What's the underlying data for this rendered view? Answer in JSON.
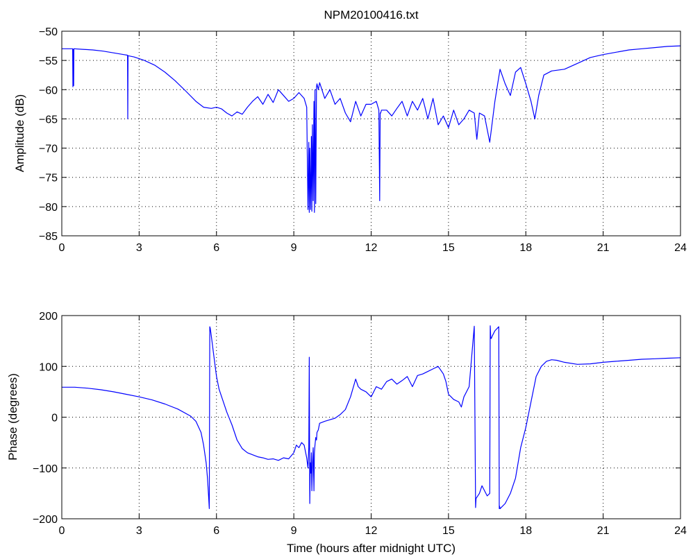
{
  "colors": {
    "line": "#0000ff",
    "axes": "#000000",
    "grid": "#000000",
    "background": "#ffffff"
  },
  "chart_data": [
    {
      "type": "line",
      "title": "NPM20100416.txt",
      "xlabel": "",
      "ylabel": "Amplitude (dB)",
      "xlim": [
        0,
        24
      ],
      "ylim": [
        -85,
        -50
      ],
      "xticks": [
        0,
        3,
        6,
        9,
        12,
        15,
        18,
        21,
        24
      ],
      "yticks": [
        -85,
        -80,
        -75,
        -70,
        -65,
        -60,
        -55,
        -50
      ],
      "grid": true,
      "series": [
        {
          "x": [
            0,
            0.3,
            0.42,
            0.43,
            0.44,
            0.45,
            0.46,
            0.47,
            0.48,
            0.8,
            1.2,
            1.6,
            2.0,
            2.4,
            2.55,
            2.56,
            2.57,
            2.58,
            2.8,
            3.2,
            3.6,
            4.0,
            4.4,
            4.8,
            5.2,
            5.5,
            5.8,
            6.0,
            6.2,
            6.4,
            6.6,
            6.8,
            7.0,
            7.2,
            7.4,
            7.6,
            7.8,
            8.0,
            8.2,
            8.4,
            8.6,
            8.8,
            9.0,
            9.2,
            9.4,
            9.5,
            9.55,
            9.58,
            9.6,
            9.62,
            9.65,
            9.68,
            9.7,
            9.72,
            9.75,
            9.78,
            9.8,
            9.82,
            9.85,
            9.88,
            9.9,
            9.95,
            10.0,
            10.2,
            10.4,
            10.6,
            10.8,
            11.0,
            11.2,
            11.4,
            11.6,
            11.8,
            12.0,
            12.2,
            12.3,
            12.33,
            12.35,
            12.37,
            12.4,
            12.6,
            12.8,
            13.0,
            13.2,
            13.4,
            13.6,
            13.8,
            14.0,
            14.2,
            14.4,
            14.6,
            14.8,
            15.0,
            15.2,
            15.4,
            15.6,
            15.8,
            16.0,
            16.1,
            16.2,
            16.4,
            16.6,
            16.8,
            17.0,
            17.2,
            17.4,
            17.6,
            17.8,
            18.0,
            18.2,
            18.35,
            18.5,
            18.7,
            19.0,
            19.5,
            20.0,
            20.5,
            21.0,
            21.5,
            22.0,
            22.5,
            23.0,
            23.5,
            24.0
          ],
          "y": [
            -53.0,
            -53.0,
            -53.0,
            -59.5,
            -59.2,
            -53.1,
            -59.3,
            -53.0,
            -53.0,
            -53.1,
            -53.2,
            -53.4,
            -53.7,
            -54.0,
            -54.1,
            -65.0,
            -54.2,
            -54.2,
            -54.4,
            -55.0,
            -55.8,
            -57.0,
            -58.5,
            -60.2,
            -62.0,
            -63.0,
            -63.2,
            -63.0,
            -63.3,
            -64.0,
            -64.5,
            -63.8,
            -64.2,
            -63.0,
            -62.0,
            -61.2,
            -62.5,
            -60.8,
            -62.2,
            -60.0,
            -61.0,
            -62.0,
            -61.5,
            -60.5,
            -61.5,
            -63.0,
            -80.5,
            -69.0,
            -81.0,
            -70.0,
            -80.5,
            -68.0,
            -80.8,
            -66.0,
            -79.0,
            -62.0,
            -81.0,
            -60.0,
            -79.5,
            -59.5,
            -59.0,
            -60.0,
            -58.8,
            -61.5,
            -60.0,
            -62.5,
            -61.5,
            -64.0,
            -65.5,
            -62.0,
            -64.5,
            -62.5,
            -62.5,
            -62.0,
            -63.5,
            -79.0,
            -64.0,
            -64.0,
            -63.5,
            -63.5,
            -64.5,
            -63.2,
            -62.0,
            -64.5,
            -62.0,
            -63.5,
            -61.5,
            -65.0,
            -61.5,
            -66.0,
            -64.5,
            -66.5,
            -63.5,
            -66.0,
            -65.0,
            -63.5,
            -64.0,
            -68.5,
            -64.0,
            -64.5,
            -69.0,
            -62.0,
            -56.5,
            -59.0,
            -61.0,
            -57.0,
            -56.2,
            -59.0,
            -62.0,
            -65.0,
            -61.0,
            -57.5,
            -56.8,
            -56.5,
            -55.5,
            -54.5,
            -54.0,
            -53.6,
            -53.2,
            -53.0,
            -52.8,
            -52.6,
            -52.5
          ]
        }
      ]
    },
    {
      "type": "line",
      "title": "",
      "xlabel": "Time (hours after midnight UTC)",
      "ylabel": "Phase (degrees)",
      "xlim": [
        0,
        24
      ],
      "ylim": [
        -200,
        200
      ],
      "xticks": [
        0,
        3,
        6,
        9,
        12,
        15,
        18,
        21,
        24
      ],
      "yticks": [
        -200,
        -100,
        0,
        100,
        200
      ],
      "grid": true,
      "series": [
        {
          "x": [
            0,
            0.5,
            1.0,
            1.5,
            2.0,
            2.5,
            3.0,
            3.5,
            4.0,
            4.5,
            5.0,
            5.2,
            5.4,
            5.5,
            5.6,
            5.65,
            5.7,
            5.72,
            5.74,
            5.76,
            5.8,
            5.9,
            6.0,
            6.1,
            6.2,
            6.3,
            6.4,
            6.6,
            6.8,
            7.0,
            7.2,
            7.4,
            7.6,
            7.8,
            8.0,
            8.2,
            8.4,
            8.6,
            8.8,
            9.0,
            9.1,
            9.2,
            9.3,
            9.4,
            9.5,
            9.55,
            9.58,
            9.6,
            9.62,
            9.64,
            9.66,
            9.68,
            9.7,
            9.72,
            9.75,
            9.78,
            9.8,
            9.82,
            9.85,
            9.88,
            9.9,
            9.95,
            10.0,
            10.2,
            10.4,
            10.6,
            10.8,
            11.0,
            11.2,
            11.4,
            11.5,
            11.6,
            11.8,
            12.0,
            12.2,
            12.4,
            12.6,
            12.8,
            13.0,
            13.2,
            13.4,
            13.6,
            13.8,
            14.0,
            14.2,
            14.4,
            14.6,
            14.8,
            14.9,
            15.0,
            15.1,
            15.2,
            15.4,
            15.5,
            15.6,
            15.8,
            16.0,
            16.05,
            16.06,
            16.07,
            16.2,
            16.3,
            16.5,
            16.6,
            16.62,
            16.64,
            16.66,
            16.7,
            16.8,
            16.95,
            16.97,
            16.98,
            17.0,
            17.2,
            17.4,
            17.6,
            17.8,
            18.0,
            18.2,
            18.4,
            18.6,
            18.8,
            19.0,
            19.2,
            19.5,
            20.0,
            20.5,
            21.0,
            21.5,
            22.0,
            22.5,
            23.0,
            23.5,
            24.0
          ],
          "y": [
            59,
            59,
            57,
            54,
            50,
            45,
            40,
            34,
            26,
            16,
            2,
            -8,
            -30,
            -55,
            -90,
            -120,
            -160,
            -180,
            178,
            175,
            160,
            120,
            80,
            55,
            40,
            25,
            10,
            -15,
            -45,
            -62,
            -70,
            -74,
            -78,
            -80,
            -83,
            -82,
            -85,
            -80,
            -82,
            -70,
            -55,
            -60,
            -50,
            -55,
            -80,
            -100,
            -60,
            118,
            -170,
            -90,
            -110,
            -70,
            -145,
            -100,
            -60,
            -145,
            -70,
            -55,
            -40,
            -45,
            -30,
            -25,
            -12,
            -8,
            -5,
            -2,
            5,
            15,
            40,
            75,
            60,
            55,
            50,
            40,
            60,
            55,
            70,
            75,
            65,
            72,
            80,
            60,
            82,
            85,
            90,
            95,
            100,
            85,
            70,
            45,
            40,
            35,
            30,
            20,
            40,
            60,
            179,
            -178,
            -170,
            -160,
            -150,
            -135,
            -155,
            -150,
            180,
            155,
            155,
            160,
            170,
            178,
            -180,
            -175,
            -180,
            -170,
            -150,
            -120,
            -60,
            -20,
            30,
            80,
            100,
            110,
            113,
            112,
            108,
            104,
            105,
            108,
            110,
            112,
            114,
            115,
            116,
            117
          ]
        }
      ]
    }
  ]
}
